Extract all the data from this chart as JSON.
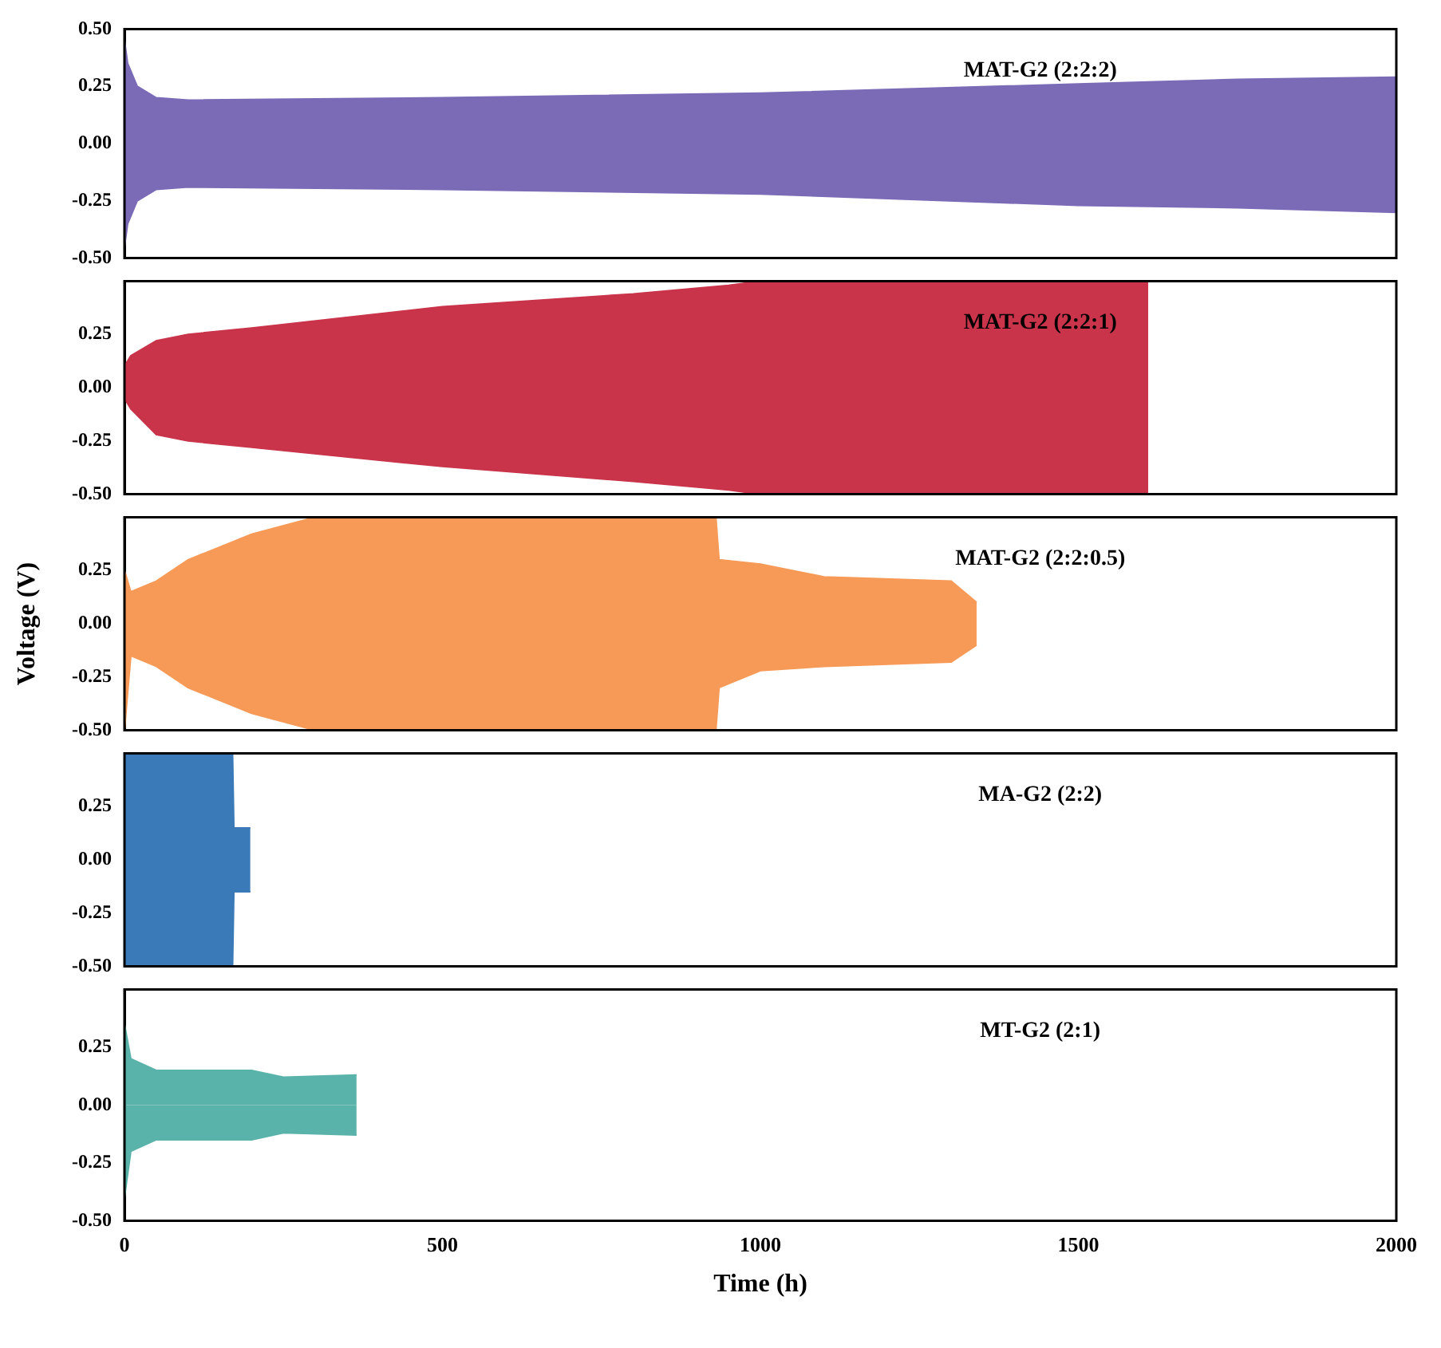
{
  "chart_data": [
    {
      "type": "area",
      "series": [
        {
          "name": "MAT-G2 (2:2:2)",
          "color": "#7b6bb7",
          "x": [
            0,
            5,
            20,
            50,
            100,
            500,
            1000,
            1500,
            1750,
            2000
          ],
          "values": [
            0.45,
            0.35,
            0.25,
            0.2,
            0.19,
            0.2,
            0.22,
            0.26,
            0.28,
            0.29
          ]
        },
        {
          "color": "#7b6bb7",
          "x": [
            0,
            5,
            20,
            50,
            100,
            500,
            1000,
            1500,
            1750,
            2000
          ],
          "values": [
            -0.45,
            -0.35,
            -0.25,
            -0.2,
            -0.19,
            -0.2,
            -0.22,
            -0.27,
            -0.28,
            -0.3
          ]
        }
      ],
      "xlim": [
        0,
        2000
      ],
      "xticks": [
        0,
        500,
        1000,
        1500,
        2000
      ],
      "ylim": [
        -0.5,
        0.5
      ],
      "yticks": [
        {
          "value": -0.5,
          "label": "-0.50"
        },
        {
          "value": -0.25,
          "label": "-0.25"
        },
        {
          "value": 0,
          "label": "0.00"
        },
        {
          "value": 0.25,
          "label": "0.25"
        },
        {
          "value": 0.5,
          "label": "0.50"
        }
      ],
      "tick_labels": "y"
    },
    {
      "type": "area",
      "series": [
        {
          "name": "MAT-G2 (2:2:1)",
          "color": "#c9344a",
          "x": [
            0,
            10,
            50,
            100,
            200,
            500,
            800,
            950,
            1000,
            1610
          ],
          "values": [
            0.1,
            0.15,
            0.22,
            0.25,
            0.28,
            0.38,
            0.44,
            0.48,
            0.5,
            0.5
          ]
        },
        {
          "color": "#c9344a",
          "x": [
            0,
            10,
            50,
            100,
            200,
            500,
            800,
            950,
            1000,
            1610
          ],
          "values": [
            -0.05,
            -0.1,
            -0.22,
            -0.25,
            -0.28,
            -0.37,
            -0.44,
            -0.48,
            -0.5,
            -0.5
          ]
        }
      ],
      "xlim": [
        0,
        2000
      ],
      "xticks": [
        0,
        500,
        1000,
        1500,
        2000
      ],
      "ylim": [
        -0.5,
        0.5
      ],
      "yticks": [
        {
          "value": -0.5,
          "label": "-0.50"
        },
        {
          "value": -0.25,
          "label": "-0.25"
        },
        {
          "value": 0,
          "label": "0.00"
        },
        {
          "value": 0.25,
          "label": "0.25"
        },
        {
          "value": 0.5,
          "label": null
        }
      ],
      "tick_labels": "y"
    },
    {
      "type": "area",
      "ylabel": "Voltage (V)",
      "series": [
        {
          "name": "MAT-G2 (2:2:0.5)",
          "color": "#f79a57",
          "x": [
            0,
            10,
            50,
            100,
            200,
            300,
            930,
            935,
            1000,
            1100,
            1300,
            1340
          ],
          "values": [
            0.25,
            0.15,
            0.2,
            0.3,
            0.42,
            0.5,
            0.5,
            0.3,
            0.28,
            0.22,
            0.2,
            0.1
          ]
        },
        {
          "color": "#f79a57",
          "x": [
            0,
            10,
            50,
            100,
            200,
            300,
            930,
            935,
            1000,
            1100,
            1300,
            1340
          ],
          "values": [
            -0.5,
            -0.15,
            -0.2,
            -0.3,
            -0.42,
            -0.5,
            -0.5,
            -0.3,
            -0.22,
            -0.2,
            -0.18,
            -0.1
          ]
        }
      ],
      "xlim": [
        0,
        2000
      ],
      "xticks": [
        0,
        500,
        1000,
        1500,
        2000
      ],
      "ylim": [
        -0.5,
        0.5
      ],
      "yticks": [
        {
          "value": -0.5,
          "label": "-0.50"
        },
        {
          "value": -0.25,
          "label": "-0.25"
        },
        {
          "value": 0,
          "label": "0.00"
        },
        {
          "value": 0.25,
          "label": "0.25"
        },
        {
          "value": 0.5,
          "label": null
        }
      ],
      "tick_labels": "y"
    },
    {
      "type": "area",
      "series": [
        {
          "name": "MA-G2 (2:2)",
          "color": "#3b7ab8",
          "x": [
            0,
            170,
            172,
            198
          ],
          "values": [
            0.5,
            0.5,
            0.15,
            0.15
          ]
        },
        {
          "color": "#3b7ab8",
          "x": [
            0,
            170,
            172,
            198
          ],
          "values": [
            -0.5,
            -0.5,
            -0.15,
            -0.15
          ]
        }
      ],
      "xlim": [
        0,
        2000
      ],
      "xticks": [
        0,
        500,
        1000,
        1500,
        2000
      ],
      "ylim": [
        -0.5,
        0.5
      ],
      "yticks": [
        {
          "value": -0.5,
          "label": "-0.50"
        },
        {
          "value": -0.25,
          "label": "-0.25"
        },
        {
          "value": 0,
          "label": "0.00"
        },
        {
          "value": 0.25,
          "label": "0.25"
        },
        {
          "value": 0.5,
          "label": null
        }
      ],
      "tick_labels": "y"
    },
    {
      "type": "area",
      "xlabel": "Time (h)",
      "series": [
        {
          "name": "MT-G2 (2:1)",
          "color": "#5ab3aa",
          "x": [
            0,
            10,
            50,
            100,
            200,
            250,
            365
          ],
          "values": [
            0.35,
            0.2,
            0.15,
            0.15,
            0.15,
            0.12,
            0.13
          ]
        },
        {
          "color": "#5ab3aa",
          "x": [
            0,
            10,
            50,
            100,
            200,
            250,
            365
          ],
          "values": [
            -0.4,
            -0.2,
            -0.15,
            -0.15,
            -0.15,
            -0.12,
            -0.13
          ]
        }
      ],
      "xlim": [
        0,
        2000
      ],
      "xticks": [
        0,
        500,
        1000,
        1500,
        2000
      ],
      "ylim": [
        -0.5,
        0.5
      ],
      "yticks": [
        {
          "value": -0.5,
          "label": "-0.50"
        },
        {
          "value": -0.25,
          "label": "-0.25"
        },
        {
          "value": 0,
          "label": "0.00"
        },
        {
          "value": 0.25,
          "label": "0.25"
        },
        {
          "value": 0.5,
          "label": null
        }
      ]
    }
  ]
}
